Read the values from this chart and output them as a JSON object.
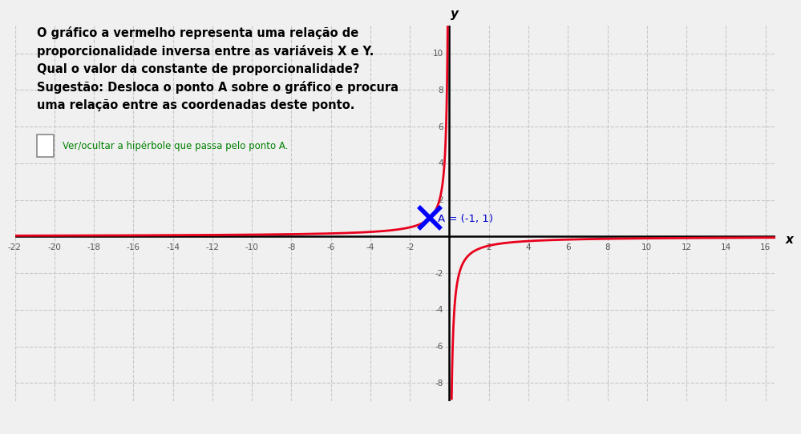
{
  "title_text": "O gráfico a vermelho representa uma relação de\nproporcionalidade inversa entre as variáveis X e Y.\nQual o valor da constante de proporcionalidade?\nSugestão: Desloca o ponto A sobre o gráfico e procura\numa relação entre as coordenadas deste ponto.",
  "checkbox_text": "Ver/ocultar a hipérbole que passa pelo ponto A.",
  "point_label": "A = (-1, 1)",
  "point_x": -1,
  "point_y": 1,
  "curve_k": -1,
  "x_min": -22,
  "x_max": 16.5,
  "y_min": -9,
  "y_max": 11.5,
  "x_ticks": [
    -22,
    -20,
    -18,
    -16,
    -14,
    -12,
    -10,
    -8,
    -6,
    -4,
    -2,
    2,
    4,
    6,
    8,
    10,
    12,
    14,
    16
  ],
  "y_ticks": [
    -8,
    -6,
    -4,
    -2,
    2,
    4,
    6,
    8,
    10
  ],
  "curve_color": "#e8001c",
  "point_color": "#0000ff",
  "axis_color": "#000000",
  "grid_color": "#c8c8c8",
  "text_color": "#000000",
  "checkbox_color": "#008000",
  "label_color": "#0000cc",
  "background_color": "#f0f0f0",
  "white_color": "#ffffff"
}
